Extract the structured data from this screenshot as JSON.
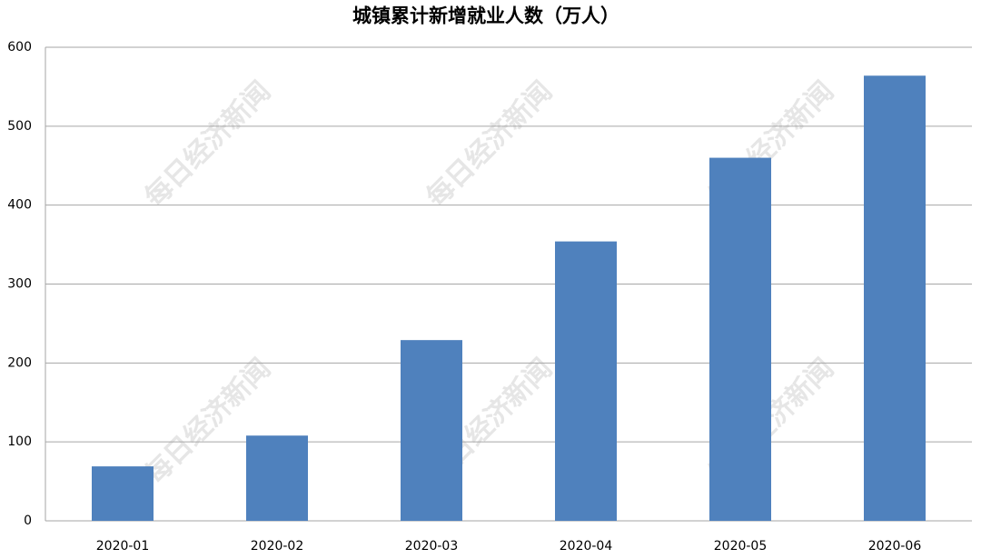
{
  "chart_data": {
    "type": "bar",
    "title": "城镇累计新增就业人数（万人）",
    "categories": [
      "2020-01",
      "2020-02",
      "2020-03",
      "2020-04",
      "2020-05",
      "2020-06"
    ],
    "values": [
      69,
      108,
      229,
      354,
      460,
      564
    ],
    "color": "#4f81bd",
    "ylim": [
      0,
      600
    ],
    "yticks": [
      0,
      100,
      200,
      300,
      400,
      500,
      600
    ],
    "grid": true,
    "watermark": "每日经济新闻"
  }
}
